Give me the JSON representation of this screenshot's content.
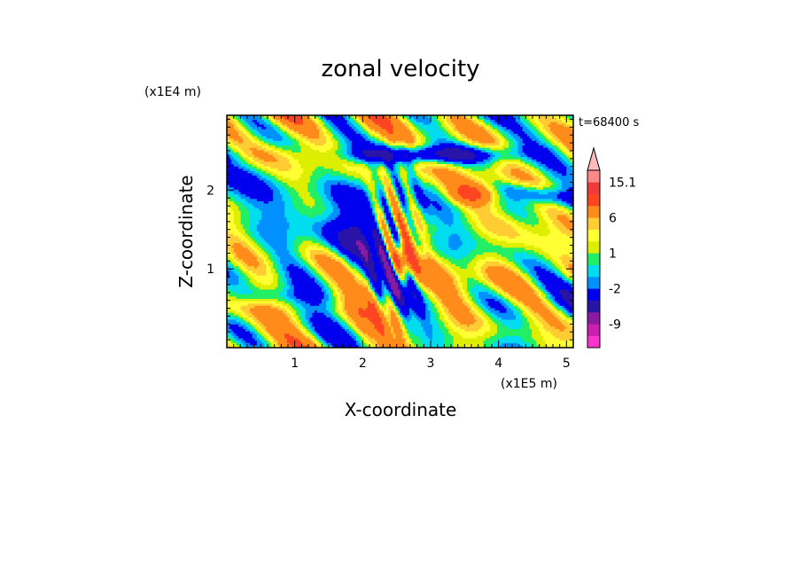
{
  "chart_data": {
    "type": "heatmap",
    "title": "zonal velocity",
    "xlabel": "X-coordinate",
    "ylabel": "Z-coordinate",
    "x_unit": "(x1E5 m)",
    "y_unit": "(x1E4 m)",
    "time_label": "t=68400 s",
    "xlim": [
      0,
      5.1
    ],
    "ylim": [
      0,
      2.95
    ],
    "x_ticks": [
      1,
      2,
      3,
      4,
      5
    ],
    "y_ticks": [
      1,
      2
    ],
    "colorbar": {
      "levels": [
        -15,
        -12,
        -9,
        -6,
        -3,
        -2,
        -1,
        0,
        1,
        2,
        3,
        6,
        9,
        12,
        15.1
      ],
      "labels": [
        "15.1",
        "6",
        "1",
        "-2",
        "-9"
      ],
      "colors": [
        "#ff33cc",
        "#cc1fb0",
        "#8a1aa0",
        "#2a14a8",
        "#0000ee",
        "#0090ff",
        "#00ddee",
        "#22ee66",
        "#ddee00",
        "#ffff33",
        "#ffcc33",
        "#ff8c1a",
        "#ff4422",
        "#ee3a3a",
        "#ff8888",
        "#ffbbbb"
      ]
    }
  }
}
